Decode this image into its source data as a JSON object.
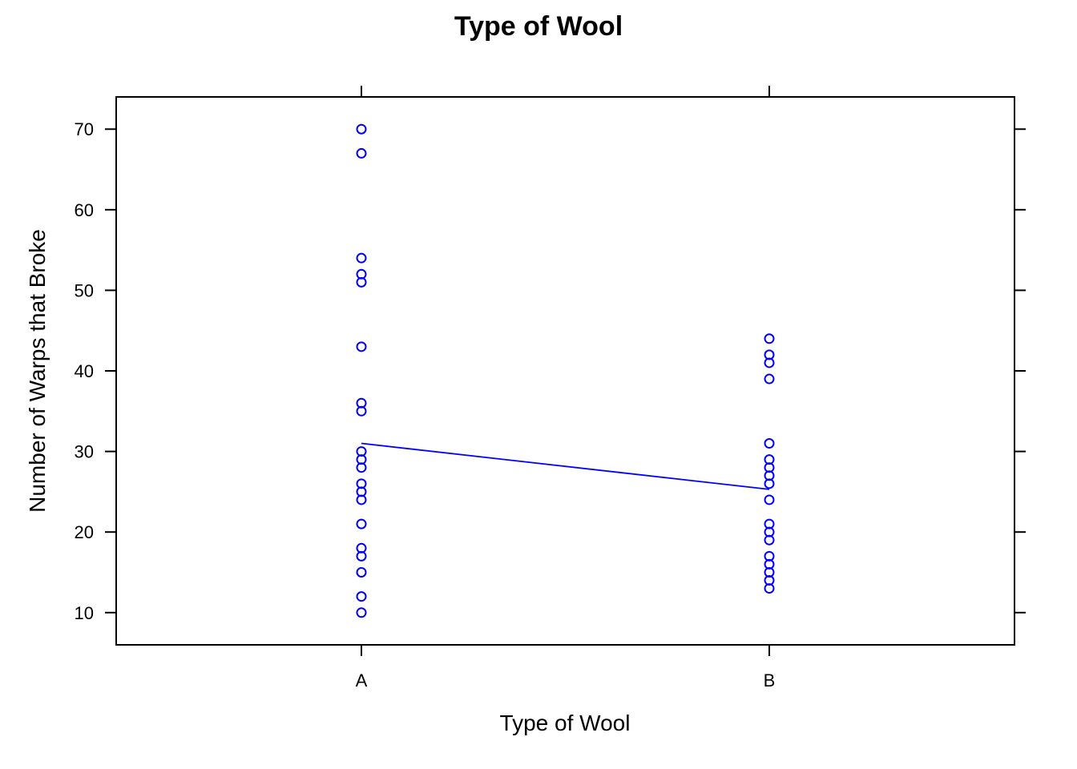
{
  "chart_data": {
    "type": "scatter",
    "title": "Type of Wool",
    "xlabel": "Type of Wool",
    "ylabel": "Number of Warps that Broke",
    "categories": [
      "A",
      "B"
    ],
    "ylim": [
      6,
      74
    ],
    "yticks": [
      10,
      20,
      30,
      40,
      50,
      60,
      70
    ],
    "grid": false,
    "legend": "none",
    "point_color": "#0000ff",
    "line_color": "#0000ff",
    "series": [
      {
        "category": "A",
        "values": [
          70,
          67,
          54,
          52,
          51,
          43,
          36,
          35,
          30,
          29,
          28,
          26,
          25,
          24,
          21,
          18,
          17,
          15,
          12,
          10
        ]
      },
      {
        "category": "B",
        "values": [
          44,
          42,
          41,
          39,
          31,
          29,
          28,
          27,
          26,
          24,
          21,
          20,
          19,
          17,
          16,
          15,
          14,
          13
        ]
      }
    ],
    "mean_line": {
      "values": [
        31.0,
        25.3
      ]
    }
  }
}
